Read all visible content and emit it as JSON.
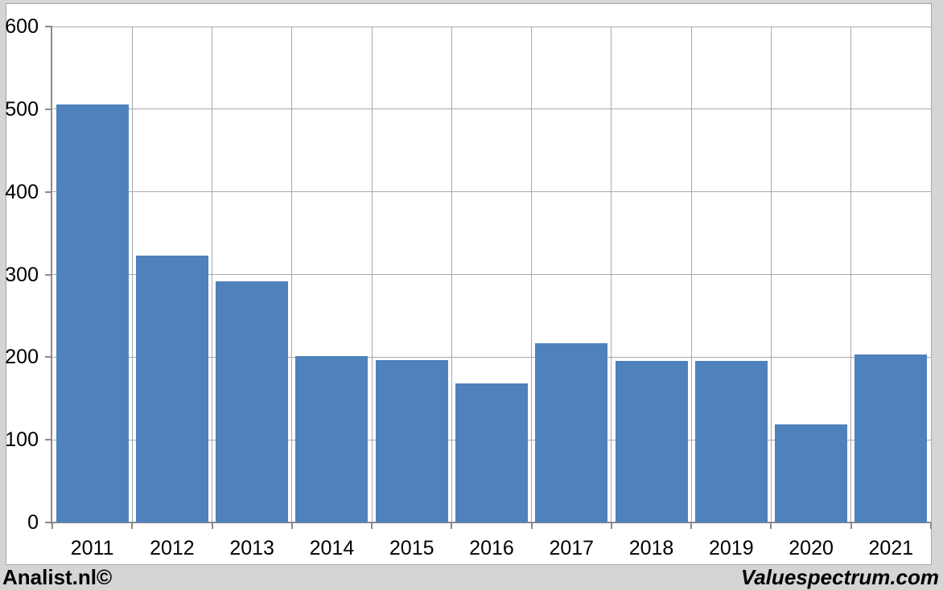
{
  "chart_data": {
    "type": "bar",
    "categories": [
      "2011",
      "2012",
      "2013",
      "2014",
      "2015",
      "2016",
      "2017",
      "2018",
      "2019",
      "2020",
      "2021"
    ],
    "values": [
      506,
      323,
      292,
      201,
      196,
      168,
      217,
      195,
      195,
      119,
      203
    ],
    "ylim": [
      0,
      600
    ],
    "ytick_step": 100,
    "ytick_labels": [
      "0",
      "100",
      "200",
      "300",
      "400",
      "500",
      "600"
    ],
    "grid": true,
    "legend": false,
    "bar_color": "#4f81bd"
  },
  "footer": {
    "left": "Analist.nl©",
    "right": "Valuespectrum.com"
  },
  "colors": {
    "page-bg": "#d5d5d5",
    "chart-bg": "#ffffff",
    "frame-border": "#a6a6a6",
    "gridline": "#a9a9a9",
    "axis": "#8a8a8a",
    "bar": "#4f81bd",
    "text": "#000000"
  }
}
